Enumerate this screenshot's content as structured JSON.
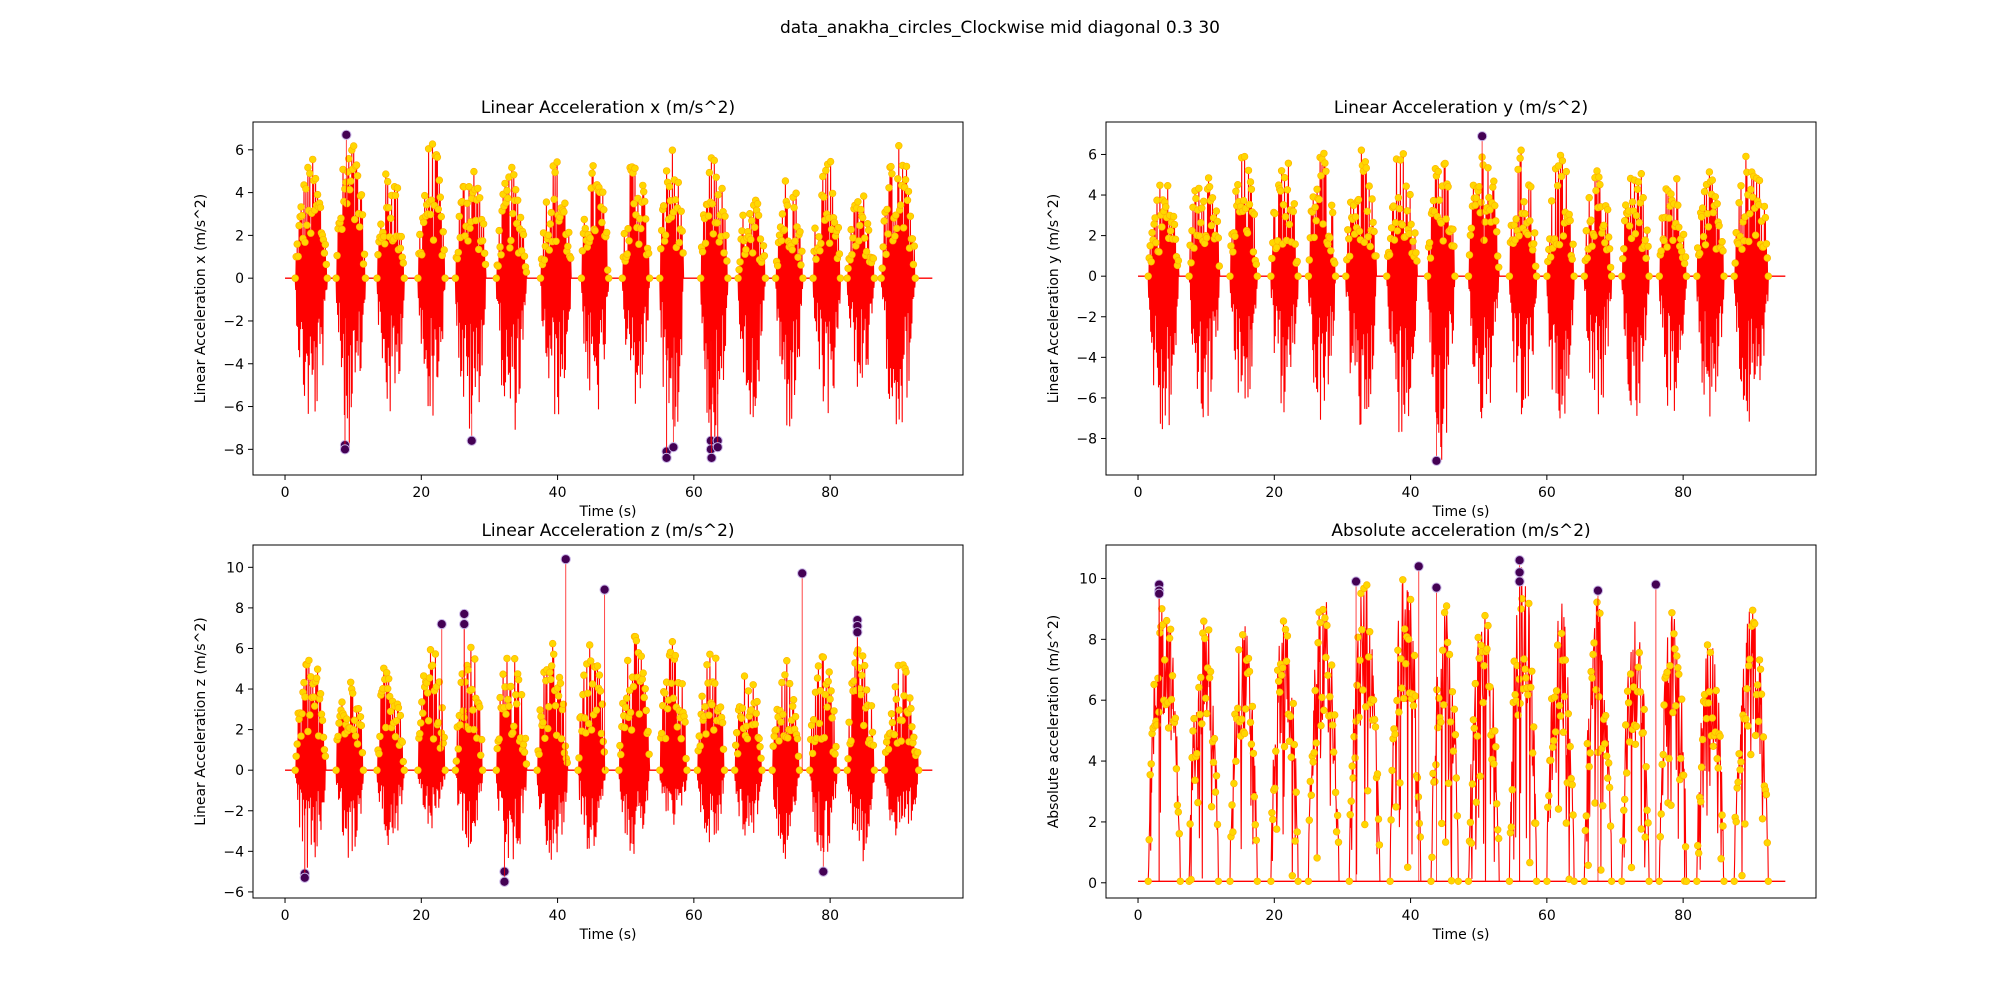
{
  "figure": {
    "suptitle": "data_anakha_circles_Clockwise mid diagonal 0.3 30"
  },
  "colors": {
    "line": "#ff0000",
    "marker": "#ffd700",
    "marker_edge": "#ffb000",
    "outlier": "#440154",
    "halo": "#c8b4e6"
  },
  "chart_data": [
    {
      "type": "scatter",
      "title": "Linear Acceleration x (m/s^2)",
      "xlabel": "Time (s)",
      "ylabel": "Linear Acceleration x (m/s^2)",
      "xlim": [
        -4.7,
        99.5
      ],
      "ylim": [
        -9.2,
        7.3
      ],
      "xticks": [
        0,
        20,
        40,
        60,
        80
      ],
      "yticks": [
        -8,
        -6,
        -4,
        -2,
        0,
        2,
        4,
        6
      ],
      "bursts": [
        {
          "start": 1.5,
          "end": 6.2,
          "max": 5.7,
          "min": -7.2
        },
        {
          "start": 7.5,
          "end": 11.8,
          "max": 6.7,
          "min": -8.0
        },
        {
          "start": 13.5,
          "end": 17.5,
          "max": 5.5,
          "min": -6.8
        },
        {
          "start": 19.5,
          "end": 23.5,
          "max": 6.6,
          "min": -6.6
        },
        {
          "start": 25.0,
          "end": 29.5,
          "max": 6.0,
          "min": -7.6
        },
        {
          "start": 31.0,
          "end": 35.5,
          "max": 5.2,
          "min": -7.5
        },
        {
          "start": 37.5,
          "end": 42.0,
          "max": 5.8,
          "min": -6.7
        },
        {
          "start": 43.5,
          "end": 47.5,
          "max": 5.5,
          "min": -6.8
        },
        {
          "start": 49.5,
          "end": 53.5,
          "max": 6.1,
          "min": -6.3
        },
        {
          "start": 55.0,
          "end": 58.5,
          "max": 6.3,
          "min": -8.4
        },
        {
          "start": 61.0,
          "end": 65.0,
          "max": 5.9,
          "min": -8.3
        },
        {
          "start": 66.5,
          "end": 70.5,
          "max": 4.4,
          "min": -6.7
        },
        {
          "start": 72.0,
          "end": 76.0,
          "max": 5.3,
          "min": -7.4
        },
        {
          "start": 77.5,
          "end": 81.5,
          "max": 6.3,
          "min": -6.8
        },
        {
          "start": 82.5,
          "end": 86.5,
          "max": 4.2,
          "min": -5.5
        },
        {
          "start": 87.5,
          "end": 92.5,
          "max": 6.5,
          "min": -7.2
        }
      ],
      "outliers": [
        {
          "x": 9.0,
          "y": 6.7
        },
        {
          "x": 8.8,
          "y": -7.8
        },
        {
          "x": 8.8,
          "y": -8.0
        },
        {
          "x": 27.4,
          "y": -7.6
        },
        {
          "x": 56.0,
          "y": -8.1
        },
        {
          "x": 56.0,
          "y": -8.4
        },
        {
          "x": 57.0,
          "y": -7.9
        },
        {
          "x": 62.5,
          "y": -7.6
        },
        {
          "x": 62.5,
          "y": -8.0
        },
        {
          "x": 62.6,
          "y": -8.4
        },
        {
          "x": 63.5,
          "y": -7.6
        },
        {
          "x": 63.5,
          "y": -7.9
        }
      ]
    },
    {
      "type": "scatter",
      "title": "Linear Acceleration y (m/s^2)",
      "xlabel": "Time (s)",
      "ylabel": "Linear Acceleration y (m/s^2)",
      "xlim": [
        -4.7,
        99.5
      ],
      "ylim": [
        -9.8,
        7.6
      ],
      "xticks": [
        0,
        20,
        40,
        60,
        80
      ],
      "yticks": [
        -8,
        -6,
        -4,
        -2,
        0,
        2,
        4,
        6
      ],
      "bursts": [
        {
          "start": 1.5,
          "end": 6.0,
          "max": 5.0,
          "min": -8.5
        },
        {
          "start": 7.5,
          "end": 12.0,
          "max": 6.4,
          "min": -7.4
        },
        {
          "start": 13.5,
          "end": 17.5,
          "max": 6.1,
          "min": -7.2
        },
        {
          "start": 19.5,
          "end": 23.5,
          "max": 6.3,
          "min": -7.0
        },
        {
          "start": 25.0,
          "end": 29.0,
          "max": 6.6,
          "min": -7.6
        },
        {
          "start": 30.5,
          "end": 35.0,
          "max": 6.3,
          "min": -8.3
        },
        {
          "start": 36.5,
          "end": 41.0,
          "max": 6.6,
          "min": -8.0
        },
        {
          "start": 42.5,
          "end": 46.5,
          "max": 6.6,
          "min": -9.1
        },
        {
          "start": 48.5,
          "end": 53.0,
          "max": 7.0,
          "min": -7.7
        },
        {
          "start": 54.5,
          "end": 58.5,
          "max": 6.4,
          "min": -7.6
        },
        {
          "start": 60.0,
          "end": 64.0,
          "max": 6.0,
          "min": -8.1
        },
        {
          "start": 65.5,
          "end": 69.5,
          "max": 5.8,
          "min": -7.0
        },
        {
          "start": 71.0,
          "end": 75.0,
          "max": 6.1,
          "min": -7.1
        },
        {
          "start": 76.5,
          "end": 80.5,
          "max": 5.8,
          "min": -7.3
        },
        {
          "start": 82.0,
          "end": 86.0,
          "max": 5.4,
          "min": -7.4
        },
        {
          "start": 87.5,
          "end": 92.5,
          "max": 6.5,
          "min": -8.0
        }
      ],
      "outliers": [
        {
          "x": 50.5,
          "y": 6.9
        },
        {
          "x": 43.8,
          "y": -9.1
        }
      ]
    },
    {
      "type": "scatter",
      "title": "Linear Acceleration z (m/s^2)",
      "xlabel": "Time (s)",
      "ylabel": "Linear Acceleration z (m/s^2)",
      "xlim": [
        -4.7,
        99.5
      ],
      "ylim": [
        -6.3,
        11.1
      ],
      "xticks": [
        0,
        20,
        40,
        60,
        80
      ],
      "yticks": [
        -6,
        -4,
        -2,
        0,
        2,
        4,
        6,
        8,
        10
      ],
      "bursts": [
        {
          "start": 1.5,
          "end": 6.0,
          "max": 6.1,
          "min": -5.0
        },
        {
          "start": 7.5,
          "end": 11.5,
          "max": 6.2,
          "min": -4.7
        },
        {
          "start": 13.5,
          "end": 17.5,
          "max": 6.3,
          "min": -3.8
        },
        {
          "start": 19.5,
          "end": 23.5,
          "max": 6.2,
          "min": -2.9
        },
        {
          "start": 25.0,
          "end": 29.0,
          "max": 6.6,
          "min": -3.8
        },
        {
          "start": 31.0,
          "end": 35.5,
          "max": 6.5,
          "min": -4.8
        },
        {
          "start": 37.0,
          "end": 41.5,
          "max": 6.4,
          "min": -4.6
        },
        {
          "start": 43.0,
          "end": 47.0,
          "max": 6.4,
          "min": -4.4
        },
        {
          "start": 49.0,
          "end": 53.5,
          "max": 6.7,
          "min": -4.3
        },
        {
          "start": 55.0,
          "end": 59.0,
          "max": 6.5,
          "min": -3.2
        },
        {
          "start": 60.5,
          "end": 64.5,
          "max": 6.2,
          "min": -3.9
        },
        {
          "start": 66.0,
          "end": 70.0,
          "max": 5.1,
          "min": -3.6
        },
        {
          "start": 71.5,
          "end": 75.5,
          "max": 5.6,
          "min": -4.4
        },
        {
          "start": 77.0,
          "end": 81.0,
          "max": 5.8,
          "min": -4.5
        },
        {
          "start": 82.5,
          "end": 86.5,
          "max": 6.3,
          "min": -4.6
        },
        {
          "start": 88.0,
          "end": 93.0,
          "max": 5.4,
          "min": -4.2
        }
      ],
      "outliers": [
        {
          "x": 2.9,
          "y": -5.1
        },
        {
          "x": 2.9,
          "y": -5.3
        },
        {
          "x": 23.0,
          "y": 7.2
        },
        {
          "x": 26.3,
          "y": 7.7
        },
        {
          "x": 26.3,
          "y": 7.2
        },
        {
          "x": 32.2,
          "y": -5.0
        },
        {
          "x": 32.2,
          "y": -5.5
        },
        {
          "x": 41.2,
          "y": 10.4
        },
        {
          "x": 46.9,
          "y": 8.9
        },
        {
          "x": 75.9,
          "y": 9.7
        },
        {
          "x": 79.0,
          "y": -5.0
        },
        {
          "x": 84.0,
          "y": 7.4
        },
        {
          "x": 84.0,
          "y": 7.1
        },
        {
          "x": 84.0,
          "y": 6.8
        }
      ]
    },
    {
      "type": "scatter",
      "title": "Absolute acceleration (m/s^2)",
      "xlabel": "Time (s)",
      "ylabel": "Absolute acceleration (m/s^2)",
      "xlim": [
        -4.7,
        99.5
      ],
      "ylim": [
        -0.5,
        11.1
      ],
      "xticks": [
        0,
        20,
        40,
        60,
        80
      ],
      "yticks": [
        0,
        2,
        4,
        6,
        8,
        10
      ],
      "bursts": [
        {
          "start": 1.5,
          "end": 6.2,
          "max": 9.6,
          "min": 0.1
        },
        {
          "start": 7.5,
          "end": 11.8,
          "max": 9.1,
          "min": 0.1
        },
        {
          "start": 13.5,
          "end": 17.5,
          "max": 8.6,
          "min": 0.1
        },
        {
          "start": 19.5,
          "end": 23.5,
          "max": 8.9,
          "min": 0.1
        },
        {
          "start": 25.0,
          "end": 29.5,
          "max": 9.5,
          "min": 0.1
        },
        {
          "start": 31.0,
          "end": 35.5,
          "max": 9.9,
          "min": 0.1
        },
        {
          "start": 37.0,
          "end": 41.5,
          "max": 10.4,
          "min": 0.1
        },
        {
          "start": 43.0,
          "end": 47.0,
          "max": 9.7,
          "min": 0.1
        },
        {
          "start": 48.5,
          "end": 53.0,
          "max": 9.1,
          "min": 0.1
        },
        {
          "start": 54.5,
          "end": 58.5,
          "max": 10.6,
          "min": 0.1
        },
        {
          "start": 60.0,
          "end": 64.0,
          "max": 9.3,
          "min": 0.1
        },
        {
          "start": 65.5,
          "end": 69.5,
          "max": 9.5,
          "min": 0.1
        },
        {
          "start": 71.0,
          "end": 75.0,
          "max": 8.7,
          "min": 0.1
        },
        {
          "start": 76.5,
          "end": 80.5,
          "max": 9.1,
          "min": 0.1
        },
        {
          "start": 82.0,
          "end": 86.0,
          "max": 8.3,
          "min": 0.1
        },
        {
          "start": 87.5,
          "end": 92.5,
          "max": 9.1,
          "min": 0.1
        }
      ],
      "outliers": [
        {
          "x": 3.1,
          "y": 9.8
        },
        {
          "x": 3.1,
          "y": 9.6
        },
        {
          "x": 3.1,
          "y": 9.5
        },
        {
          "x": 32.0,
          "y": 9.9
        },
        {
          "x": 41.2,
          "y": 10.4
        },
        {
          "x": 43.8,
          "y": 9.7
        },
        {
          "x": 56.0,
          "y": 10.6
        },
        {
          "x": 56.0,
          "y": 10.2
        },
        {
          "x": 56.0,
          "y": 9.9
        },
        {
          "x": 67.5,
          "y": 9.6
        },
        {
          "x": 76.0,
          "y": 9.8
        }
      ]
    }
  ]
}
